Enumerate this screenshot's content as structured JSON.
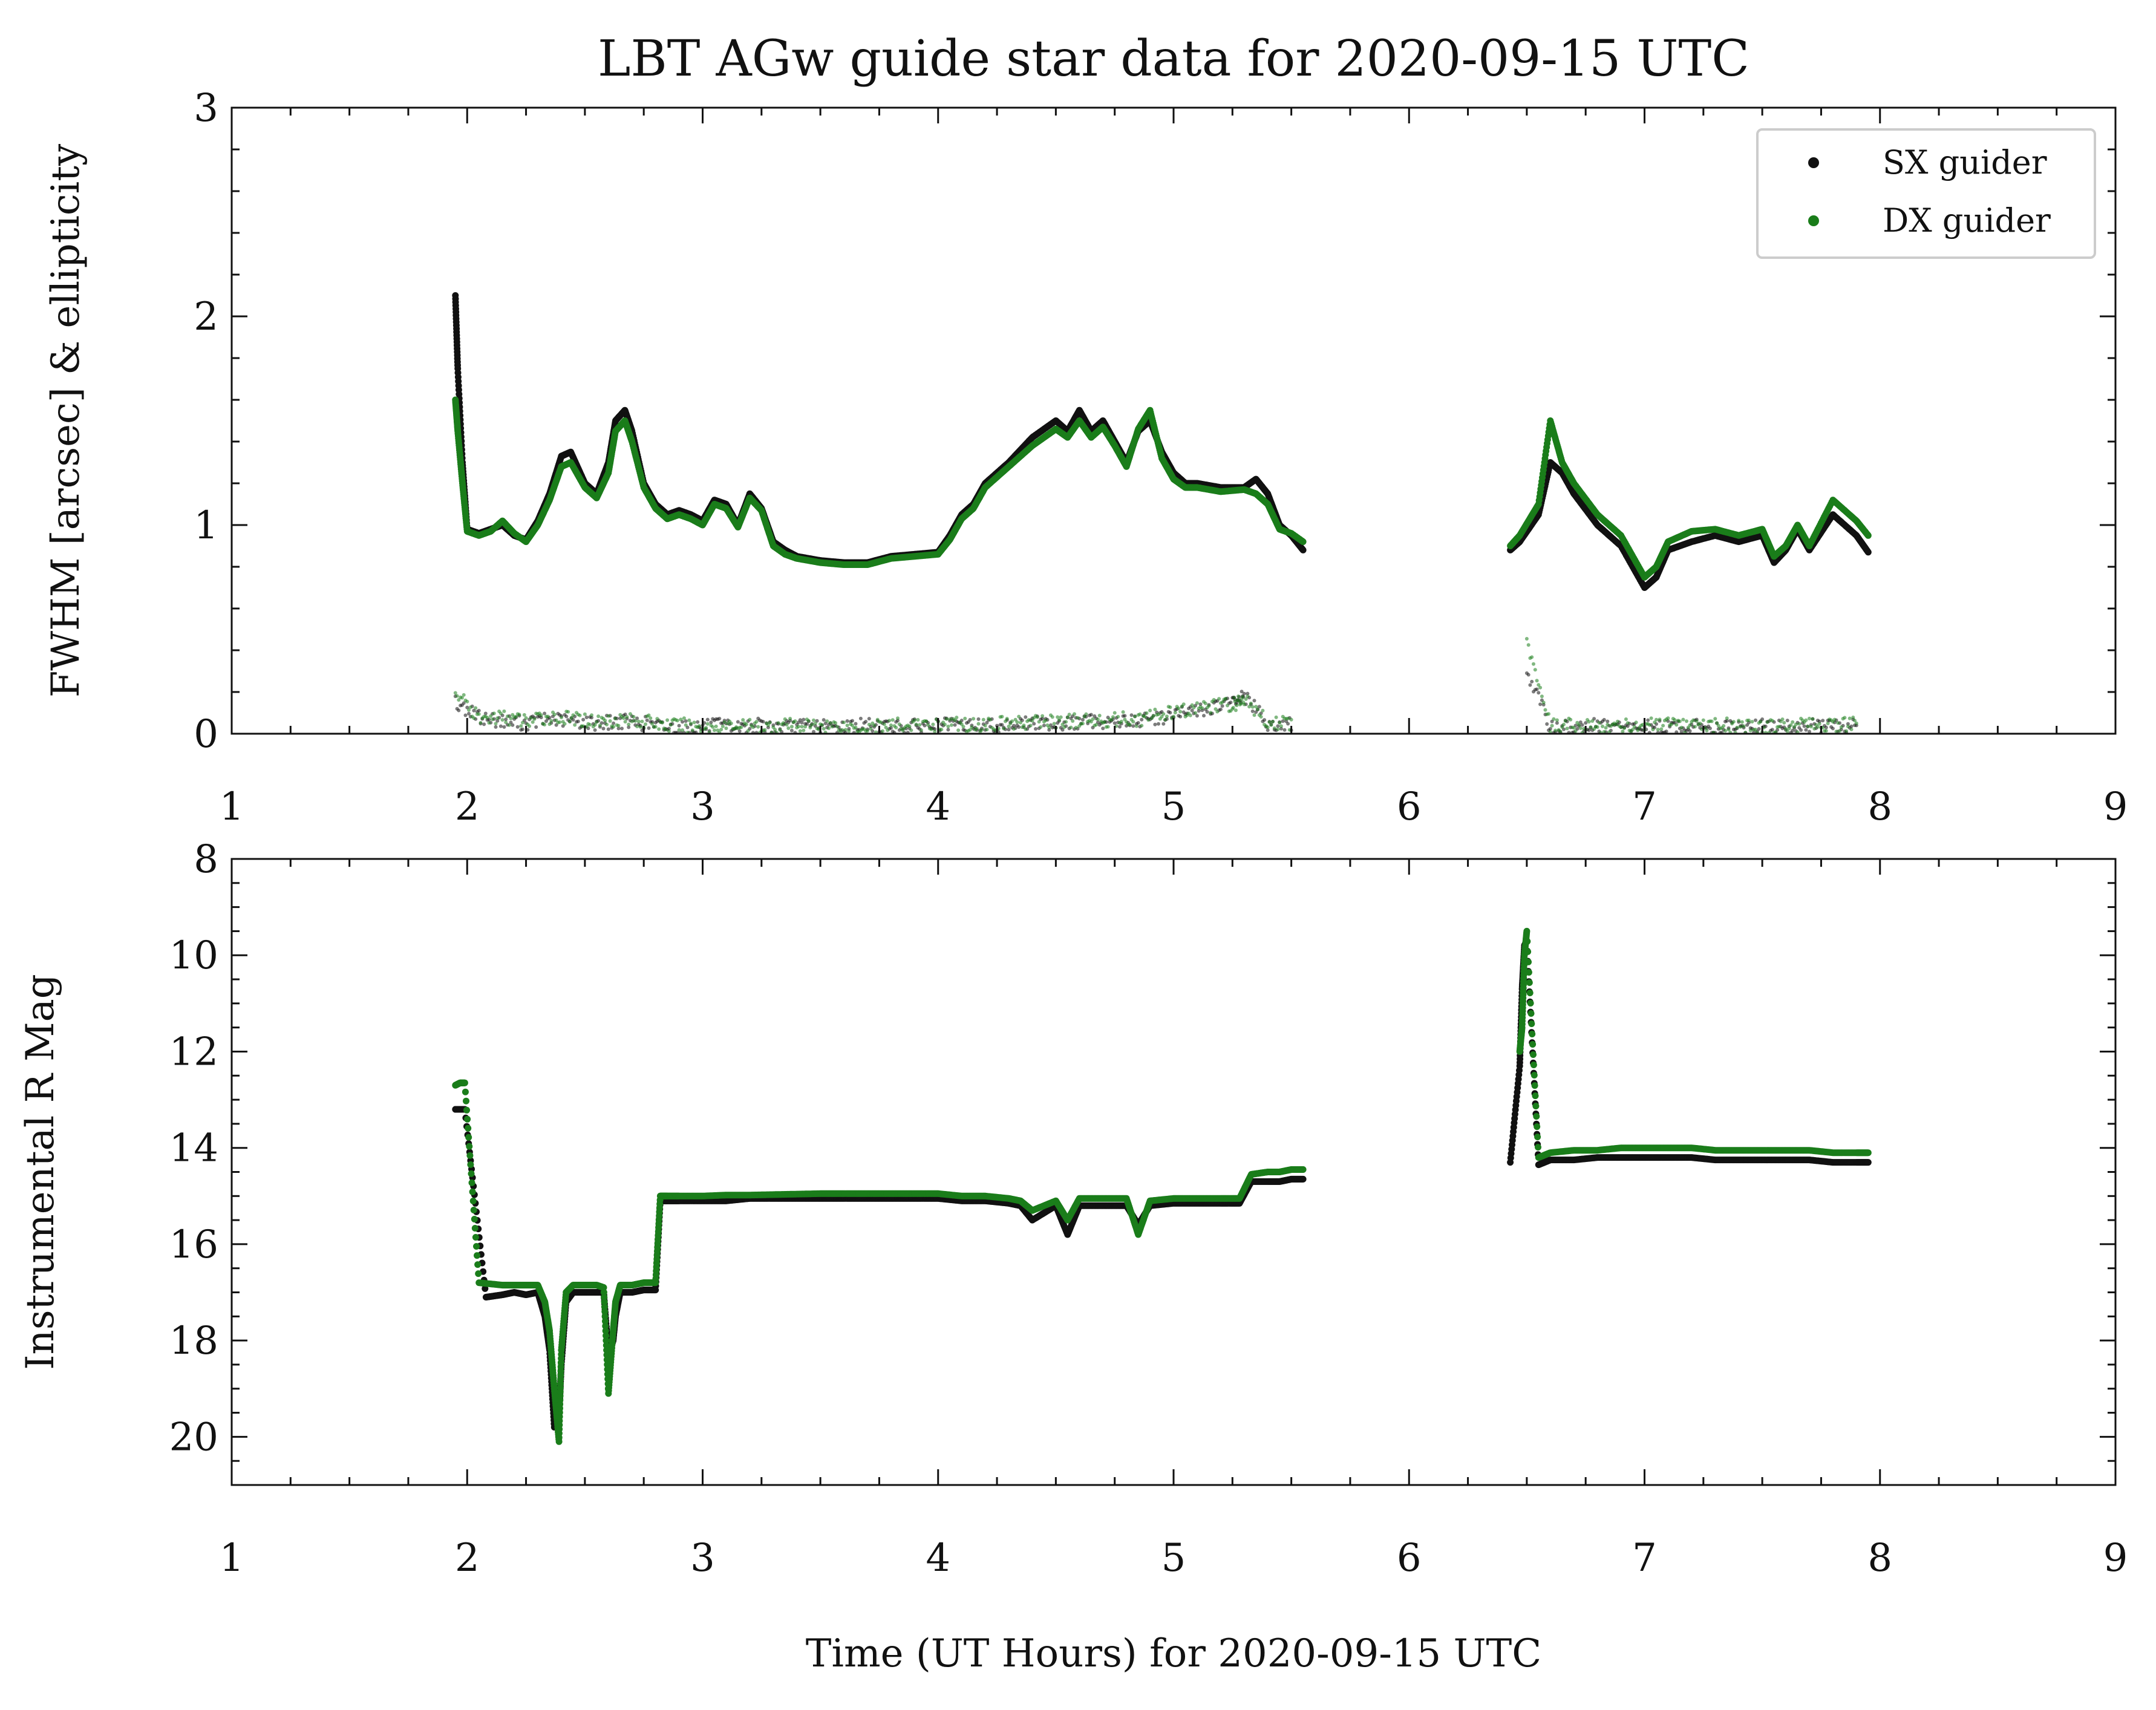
{
  "title": "LBT AGw guide star data for 2020-09-15 UTC",
  "xlabel": "Time (UT Hours) for 2020-09-15 UTC",
  "colors": {
    "sx": "#111111",
    "dx": "#1a7d1a"
  },
  "legend": {
    "placement": "top-right",
    "entries": [
      {
        "label": "SX guider"
      },
      {
        "label": "DX guider"
      }
    ]
  },
  "chart_data": [
    {
      "type": "scatter",
      "ylabel": "FWHM [arcsec] & ellipticity",
      "xlim": [
        1,
        9
      ],
      "ylim": [
        0,
        3
      ],
      "xticks": [
        1,
        2,
        3,
        4,
        5,
        6,
        7,
        8,
        9
      ],
      "yticks": [
        0,
        1,
        2,
        3
      ],
      "y_inverted": false,
      "series": [
        {
          "name": "SX guider",
          "x": [
            1.95,
            1.96,
            1.98,
            2.0,
            2.05,
            2.1,
            2.15,
            2.2,
            2.25,
            2.3,
            2.35,
            2.4,
            2.44,
            2.5,
            2.55,
            2.6,
            2.63,
            2.67,
            2.7,
            2.75,
            2.8,
            2.85,
            2.9,
            2.95,
            3.0,
            3.05,
            3.1,
            3.15,
            3.2,
            3.25,
            3.3,
            3.35,
            3.4,
            3.5,
            3.6,
            3.7,
            3.8,
            3.9,
            4.0,
            4.05,
            4.1,
            4.15,
            4.2,
            4.3,
            4.4,
            4.5,
            4.55,
            4.6,
            4.65,
            4.7,
            4.75,
            4.8,
            4.85,
            4.9,
            4.95,
            5.0,
            5.05,
            5.1,
            5.2,
            5.3,
            5.35,
            5.4,
            5.45,
            5.5,
            5.55,
            6.43,
            6.47,
            6.55,
            6.6,
            6.65,
            6.7,
            6.8,
            6.9,
            7.0,
            7.05,
            7.1,
            7.2,
            7.3,
            7.4,
            7.5,
            7.55,
            7.6,
            7.65,
            7.7,
            7.8,
            7.9,
            7.95
          ],
          "y": [
            2.1,
            1.75,
            1.3,
            0.98,
            0.96,
            0.98,
            1.0,
            0.95,
            0.93,
            1.02,
            1.15,
            1.33,
            1.35,
            1.2,
            1.15,
            1.3,
            1.5,
            1.55,
            1.45,
            1.2,
            1.1,
            1.05,
            1.07,
            1.05,
            1.02,
            1.12,
            1.1,
            1.0,
            1.15,
            1.08,
            0.92,
            0.88,
            0.85,
            0.83,
            0.82,
            0.82,
            0.85,
            0.86,
            0.87,
            0.95,
            1.05,
            1.1,
            1.2,
            1.3,
            1.42,
            1.5,
            1.45,
            1.55,
            1.45,
            1.5,
            1.4,
            1.3,
            1.45,
            1.5,
            1.35,
            1.25,
            1.2,
            1.2,
            1.18,
            1.18,
            1.22,
            1.15,
            1.0,
            0.95,
            0.88,
            0.88,
            0.92,
            1.05,
            1.3,
            1.25,
            1.15,
            1.0,
            0.9,
            0.7,
            0.75,
            0.88,
            0.92,
            0.95,
            0.92,
            0.95,
            0.82,
            0.88,
            0.98,
            0.88,
            1.05,
            0.95,
            0.87
          ]
        },
        {
          "name": "DX guider",
          "x": [
            1.95,
            1.96,
            1.98,
            2.0,
            2.05,
            2.1,
            2.15,
            2.2,
            2.25,
            2.3,
            2.35,
            2.4,
            2.44,
            2.5,
            2.55,
            2.6,
            2.63,
            2.67,
            2.7,
            2.75,
            2.8,
            2.85,
            2.9,
            2.95,
            3.0,
            3.05,
            3.1,
            3.15,
            3.2,
            3.25,
            3.3,
            3.35,
            3.4,
            3.5,
            3.6,
            3.7,
            3.8,
            3.9,
            4.0,
            4.05,
            4.1,
            4.15,
            4.2,
            4.3,
            4.4,
            4.5,
            4.55,
            4.6,
            4.65,
            4.7,
            4.75,
            4.8,
            4.85,
            4.9,
            4.95,
            5.0,
            5.05,
            5.1,
            5.2,
            5.3,
            5.35,
            5.4,
            5.45,
            5.5,
            5.55,
            6.43,
            6.47,
            6.55,
            6.6,
            6.65,
            6.7,
            6.8,
            6.9,
            7.0,
            7.05,
            7.1,
            7.2,
            7.3,
            7.4,
            7.5,
            7.55,
            7.6,
            7.65,
            7.7,
            7.8,
            7.9,
            7.95
          ],
          "y": [
            1.6,
            1.45,
            1.2,
            0.97,
            0.95,
            0.97,
            1.02,
            0.96,
            0.92,
            1.0,
            1.12,
            1.28,
            1.3,
            1.18,
            1.13,
            1.25,
            1.45,
            1.5,
            1.4,
            1.18,
            1.08,
            1.03,
            1.05,
            1.03,
            1.0,
            1.1,
            1.08,
            0.99,
            1.13,
            1.07,
            0.9,
            0.86,
            0.84,
            0.82,
            0.81,
            0.81,
            0.84,
            0.85,
            0.86,
            0.93,
            1.03,
            1.08,
            1.18,
            1.28,
            1.38,
            1.46,
            1.42,
            1.5,
            1.42,
            1.47,
            1.38,
            1.28,
            1.46,
            1.55,
            1.32,
            1.22,
            1.18,
            1.18,
            1.16,
            1.17,
            1.15,
            1.1,
            0.98,
            0.96,
            0.92,
            0.9,
            0.95,
            1.1,
            1.5,
            1.3,
            1.2,
            1.05,
            0.95,
            0.75,
            0.8,
            0.92,
            0.97,
            0.98,
            0.95,
            0.98,
            0.85,
            0.9,
            1.0,
            0.9,
            1.12,
            1.02,
            0.95
          ]
        },
        {
          "name": "SX ellipticity",
          "x": [
            1.95,
            2.05,
            2.15,
            2.25,
            2.35,
            2.45,
            2.55,
            2.65,
            2.75,
            2.85,
            2.95,
            3.05,
            3.15,
            3.25,
            3.35,
            3.45,
            3.55,
            3.65,
            3.75,
            3.85,
            3.95,
            4.05,
            4.15,
            4.25,
            4.35,
            4.45,
            4.55,
            4.65,
            4.75,
            4.85,
            4.95,
            5.05,
            5.15,
            5.25,
            5.3,
            5.4,
            5.5,
            6.5,
            6.6,
            6.7,
            6.8,
            6.9,
            7.0,
            7.1,
            7.2,
            7.3,
            7.4,
            7.5,
            7.6,
            7.7,
            7.8,
            7.9
          ],
          "y": [
            0.15,
            0.08,
            0.06,
            0.05,
            0.07,
            0.06,
            0.05,
            0.06,
            0.05,
            0.03,
            0.03,
            0.04,
            0.03,
            0.04,
            0.03,
            0.04,
            0.03,
            0.04,
            0.04,
            0.03,
            0.04,
            0.04,
            0.04,
            0.04,
            0.05,
            0.05,
            0.05,
            0.06,
            0.06,
            0.06,
            0.08,
            0.1,
            0.12,
            0.15,
            0.18,
            0.05,
            0.04,
            0.3,
            0.03,
            0.03,
            0.04,
            0.03,
            0.03,
            0.03,
            0.04,
            0.03,
            0.03,
            0.04,
            0.03,
            0.04,
            0.03,
            0.04
          ]
        },
        {
          "name": "DX ellipticity",
          "x": [
            1.95,
            2.05,
            2.15,
            2.25,
            2.35,
            2.45,
            2.55,
            2.65,
            2.75,
            2.85,
            2.95,
            3.05,
            3.15,
            3.25,
            3.35,
            3.45,
            3.55,
            3.65,
            3.75,
            3.85,
            3.95,
            4.05,
            4.15,
            4.25,
            4.35,
            4.45,
            4.55,
            4.65,
            4.75,
            4.85,
            4.95,
            5.05,
            5.15,
            5.25,
            5.3,
            5.4,
            5.5,
            6.5,
            6.6,
            6.7,
            6.8,
            6.9,
            7.0,
            7.1,
            7.2,
            7.3,
            7.4,
            7.5,
            7.6,
            7.7,
            7.8,
            7.9
          ],
          "y": [
            0.2,
            0.07,
            0.08,
            0.06,
            0.08,
            0.07,
            0.06,
            0.07,
            0.06,
            0.04,
            0.04,
            0.03,
            0.04,
            0.03,
            0.04,
            0.04,
            0.04,
            0.03,
            0.04,
            0.04,
            0.04,
            0.05,
            0.04,
            0.05,
            0.05,
            0.06,
            0.06,
            0.06,
            0.07,
            0.07,
            0.09,
            0.11,
            0.13,
            0.14,
            0.16,
            0.06,
            0.05,
            0.45,
            0.04,
            0.04,
            0.03,
            0.04,
            0.04,
            0.04,
            0.03,
            0.04,
            0.04,
            0.03,
            0.04,
            0.04,
            0.04,
            0.05
          ]
        }
      ]
    },
    {
      "type": "scatter",
      "ylabel": "Instrumental R Mag",
      "xlim": [
        1,
        9
      ],
      "ylim": [
        8,
        21
      ],
      "xticks": [
        1,
        2,
        3,
        4,
        5,
        6,
        7,
        8,
        9
      ],
      "yticks": [
        8,
        10,
        12,
        14,
        16,
        18,
        20
      ],
      "y_inverted": true,
      "series": [
        {
          "name": "SX guider",
          "x": [
            1.95,
            1.97,
            1.99,
            2.08,
            2.15,
            2.2,
            2.25,
            2.3,
            2.33,
            2.35,
            2.37,
            2.39,
            2.4,
            2.42,
            2.45,
            2.5,
            2.55,
            2.58,
            2.6,
            2.62,
            2.63,
            2.65,
            2.7,
            2.75,
            2.8,
            2.82,
            2.85,
            2.9,
            3.0,
            3.1,
            3.2,
            3.3,
            3.4,
            3.5,
            3.6,
            3.7,
            3.8,
            3.9,
            4.0,
            4.1,
            4.2,
            4.3,
            4.35,
            4.4,
            4.5,
            4.55,
            4.6,
            4.7,
            4.8,
            4.85,
            4.9,
            5.0,
            5.1,
            5.2,
            5.28,
            5.33,
            5.4,
            5.45,
            5.5,
            5.55,
            6.43,
            6.47,
            6.48,
            6.49,
            6.5,
            6.55,
            6.6,
            6.7,
            6.8,
            6.9,
            7.0,
            7.1,
            7.2,
            7.3,
            7.4,
            7.5,
            7.6,
            7.7,
            7.8,
            7.9,
            7.95
          ],
          "y": [
            13.2,
            13.2,
            13.2,
            17.1,
            17.05,
            17.0,
            17.05,
            17.0,
            17.5,
            18.2,
            19.8,
            19.6,
            18.5,
            17.2,
            17.0,
            17.0,
            17.0,
            17.0,
            18.3,
            18.0,
            17.5,
            17.0,
            17.0,
            16.95,
            16.95,
            15.1,
            15.1,
            15.1,
            15.1,
            15.1,
            15.05,
            15.05,
            15.05,
            15.05,
            15.05,
            15.05,
            15.05,
            15.05,
            15.05,
            15.1,
            15.1,
            15.15,
            15.2,
            15.5,
            15.2,
            15.8,
            15.2,
            15.2,
            15.2,
            15.6,
            15.2,
            15.15,
            15.15,
            15.15,
            15.15,
            14.7,
            14.7,
            14.7,
            14.65,
            14.65,
            14.3,
            12.3,
            10.7,
            9.8,
            9.7,
            14.35,
            14.25,
            14.25,
            14.2,
            14.2,
            14.2,
            14.2,
            14.2,
            14.25,
            14.25,
            14.25,
            14.25,
            14.25,
            14.3,
            14.3,
            14.3
          ]
        },
        {
          "name": "DX guider",
          "x": [
            1.95,
            1.97,
            1.99,
            2.05,
            2.15,
            2.2,
            2.25,
            2.3,
            2.33,
            2.35,
            2.37,
            2.39,
            2.4,
            2.42,
            2.45,
            2.5,
            2.55,
            2.58,
            2.6,
            2.62,
            2.63,
            2.65,
            2.7,
            2.75,
            2.8,
            2.82,
            2.85,
            2.9,
            3.0,
            3.1,
            3.2,
            3.3,
            3.4,
            3.5,
            3.6,
            3.7,
            3.8,
            3.9,
            4.0,
            4.1,
            4.2,
            4.3,
            4.35,
            4.4,
            4.5,
            4.55,
            4.6,
            4.7,
            4.8,
            4.85,
            4.9,
            5.0,
            5.1,
            5.2,
            5.28,
            5.33,
            5.4,
            5.45,
            5.5,
            5.55,
            6.47,
            6.48,
            6.49,
            6.5,
            6.55,
            6.6,
            6.7,
            6.8,
            6.9,
            7.0,
            7.1,
            7.2,
            7.3,
            7.4,
            7.5,
            7.6,
            7.7,
            7.8,
            7.9,
            7.95
          ],
          "y": [
            12.7,
            12.65,
            12.65,
            16.8,
            16.85,
            16.85,
            16.85,
            16.85,
            17.2,
            17.8,
            19.0,
            20.1,
            18.2,
            17.0,
            16.85,
            16.85,
            16.85,
            16.9,
            19.1,
            17.8,
            17.2,
            16.85,
            16.85,
            16.8,
            16.8,
            15.0,
            15.0,
            15.0,
            15.0,
            14.98,
            14.98,
            14.97,
            14.96,
            14.95,
            14.95,
            14.95,
            14.95,
            14.95,
            14.95,
            15.0,
            15.0,
            15.05,
            15.1,
            15.3,
            15.1,
            15.5,
            15.05,
            15.05,
            15.05,
            15.8,
            15.1,
            15.05,
            15.05,
            15.05,
            15.05,
            14.55,
            14.5,
            14.5,
            14.45,
            14.45,
            12.0,
            11.5,
            10.0,
            9.5,
            14.2,
            14.1,
            14.05,
            14.05,
            14.0,
            14.0,
            14.0,
            14.0,
            14.05,
            14.05,
            14.05,
            14.05,
            14.05,
            14.1,
            14.1,
            14.1
          ]
        }
      ]
    }
  ]
}
